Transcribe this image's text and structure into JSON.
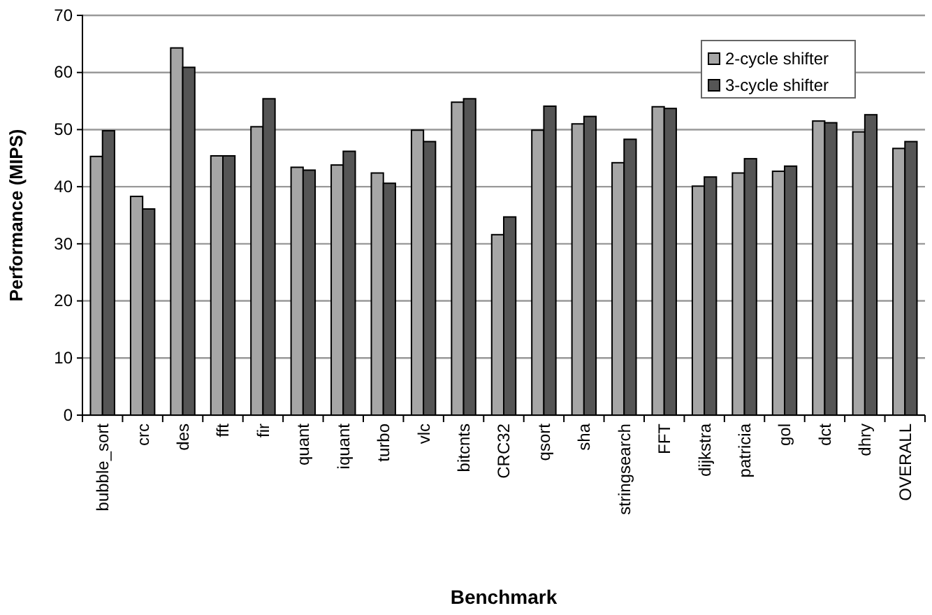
{
  "chart_data": {
    "type": "bar",
    "xlabel": "Benchmark",
    "ylabel": "Performance (MIPS)",
    "categories": [
      "bubble_sort",
      "crc",
      "des",
      "fft",
      "fir",
      "quant",
      "iquant",
      "turbo",
      "vlc",
      "bitcnts",
      "CRC32",
      "qsort",
      "sha",
      "stringsearch",
      "FFT",
      "dijkstra",
      "patricia",
      "gol",
      "dct",
      "dhry",
      "OVERALL"
    ],
    "series": [
      {
        "name": "2-cycle shifter",
        "color": "#a6a6a6",
        "values": [
          45.3,
          38.3,
          64.3,
          45.4,
          50.5,
          43.4,
          43.8,
          42.4,
          49.9,
          54.8,
          31.6,
          49.9,
          51.0,
          44.2,
          54.0,
          40.1,
          42.4,
          42.7,
          51.5,
          49.6,
          46.7
        ]
      },
      {
        "name": "3-cycle shifter",
        "color": "#555555",
        "values": [
          49.8,
          36.1,
          60.9,
          45.4,
          55.4,
          42.9,
          46.2,
          40.6,
          47.9,
          55.4,
          34.7,
          54.1,
          52.3,
          48.3,
          53.7,
          41.7,
          44.9,
          43.6,
          51.2,
          52.6,
          47.9
        ]
      }
    ],
    "ylim": [
      0,
      70
    ],
    "yticks": [
      0,
      10,
      20,
      30,
      40,
      50,
      60,
      70
    ],
    "grid": "y",
    "legend": "top right"
  }
}
